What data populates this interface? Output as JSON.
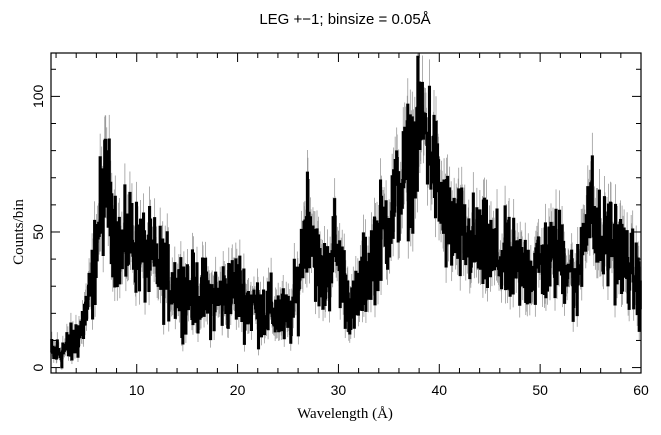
{
  "chart_data": {
    "type": "line",
    "title": "LEG +−1; binsize = 0.05Å",
    "xlabel": "Wavelength (Å)",
    "ylabel": "Counts/bin",
    "xlim": [
      1.5,
      60
    ],
    "ylim": [
      -2,
      116
    ],
    "xticks": [
      10,
      20,
      30,
      40,
      50,
      60
    ],
    "yticks": [
      0,
      50,
      100
    ],
    "xtick_labels": [
      "10",
      "20",
      "30",
      "40",
      "50",
      "60"
    ],
    "ytick_labels": [
      "0",
      "50",
      "100"
    ],
    "binsize": 0.05,
    "grid": false,
    "series": [
      {
        "style": "histogram-step",
        "color": "#000000",
        "error_bar_color": "#9a9a9a",
        "profile_x": [
          1.5,
          2.5,
          3.5,
          4.5,
          5.5,
          6.0,
          6.5,
          7.0,
          7.5,
          8.0,
          8.5,
          9.0,
          9.5,
          10.0,
          11.0,
          12.0,
          13.0,
          14.0,
          15.0,
          16.0,
          17.0,
          18.0,
          19.0,
          20.0,
          21.0,
          22.0,
          23.0,
          24.0,
          25.0,
          25.5,
          26.0,
          26.5,
          27.0,
          27.5,
          28.0,
          28.5,
          29.0,
          29.5,
          30.0,
          30.5,
          31.0,
          31.5,
          32.0,
          33.0,
          34.0,
          35.0,
          36.0,
          37.0,
          38.0,
          38.5,
          39.0,
          39.5,
          40.0,
          41.0,
          42.0,
          43.0,
          44.0,
          45.0,
          46.0,
          47.0,
          48.0,
          49.0,
          50.0,
          51.0,
          52.0,
          53.0,
          53.5,
          54.0,
          54.5,
          55.0,
          55.5,
          56.0,
          57.0,
          58.0,
          59.0,
          60.0
        ],
        "profile_y": [
          5,
          6,
          8,
          14,
          28,
          45,
          60,
          68,
          58,
          48,
          42,
          45,
          50,
          44,
          40,
          38,
          33,
          30,
          28,
          27,
          26,
          25,
          27,
          30,
          24,
          22,
          21,
          20,
          17,
          22,
          30,
          45,
          60,
          48,
          36,
          32,
          34,
          48,
          40,
          32,
          26,
          20,
          28,
          38,
          48,
          55,
          65,
          75,
          85,
          90,
          84,
          75,
          62,
          52,
          48,
          46,
          44,
          42,
          40,
          38,
          36,
          36,
          38,
          40,
          42,
          38,
          25,
          40,
          58,
          62,
          50,
          45,
          48,
          42,
          35,
          30
        ]
      }
    ]
  }
}
